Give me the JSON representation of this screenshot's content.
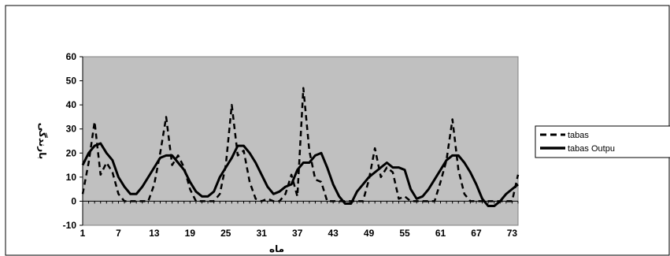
{
  "chart_data": {
    "type": "line",
    "title": "",
    "xlabel": "ماه",
    "ylabel": "بارندگی",
    "xlim": [
      1,
      74
    ],
    "ylim": [
      -10,
      60
    ],
    "yticks": [
      -10,
      0,
      10,
      20,
      30,
      40,
      50,
      60
    ],
    "xticks": [
      1,
      7,
      13,
      19,
      25,
      31,
      37,
      43,
      49,
      55,
      61,
      67,
      73
    ],
    "grid": false,
    "plot_background": "#c0c0c0",
    "legend": {
      "position": "right",
      "entries": [
        "tabas",
        "tabas Outpu"
      ]
    },
    "x": [
      1,
      2,
      3,
      4,
      5,
      6,
      7,
      8,
      9,
      10,
      11,
      12,
      13,
      14,
      15,
      16,
      17,
      18,
      19,
      20,
      21,
      22,
      23,
      24,
      25,
      26,
      27,
      28,
      29,
      30,
      31,
      32,
      33,
      34,
      35,
      36,
      37,
      38,
      39,
      40,
      41,
      42,
      43,
      44,
      45,
      46,
      47,
      48,
      49,
      50,
      51,
      52,
      53,
      54,
      55,
      56,
      57,
      58,
      59,
      60,
      61,
      62,
      63,
      64,
      65,
      66,
      67,
      68,
      69,
      70,
      71,
      72,
      73,
      74
    ],
    "series": [
      {
        "name": "tabas",
        "style": "dashed",
        "color": "#000000",
        "values": [
          3,
          16,
          33,
          11,
          16,
          12,
          3,
          0,
          0,
          0,
          0,
          0,
          7,
          20,
          35,
          15,
          19,
          14,
          5,
          0,
          0,
          0,
          0,
          3,
          15,
          40,
          19,
          21,
          8,
          1,
          0,
          1,
          0,
          0,
          3,
          11,
          2,
          47,
          21,
          9,
          8,
          0,
          0,
          0,
          0,
          0,
          0,
          0,
          9,
          22,
          10,
          14,
          12,
          1,
          2,
          0,
          0,
          0,
          0,
          0,
          8,
          17,
          34,
          13,
          3,
          0,
          0,
          0,
          0,
          0,
          0,
          0,
          0,
          11
        ]
      },
      {
        "name": "tabas Outpu",
        "style": "solid",
        "color": "#000000",
        "values": [
          15,
          20,
          23,
          24,
          20,
          17,
          10,
          6,
          3,
          3,
          6,
          10,
          14,
          18,
          19,
          19,
          16,
          13,
          8,
          4,
          2,
          2,
          4,
          10,
          14,
          18,
          23,
          23,
          20,
          16,
          11,
          6,
          3,
          4,
          6,
          7,
          13,
          16,
          16,
          19,
          20,
          14,
          7,
          2,
          -1,
          -1,
          4,
          7,
          10,
          12,
          14,
          16,
          14,
          14,
          13,
          5,
          1,
          2,
          5,
          9,
          13,
          17,
          19,
          19,
          16,
          12,
          7,
          1,
          -2,
          -2,
          0,
          3,
          5,
          7
        ]
      }
    ]
  }
}
